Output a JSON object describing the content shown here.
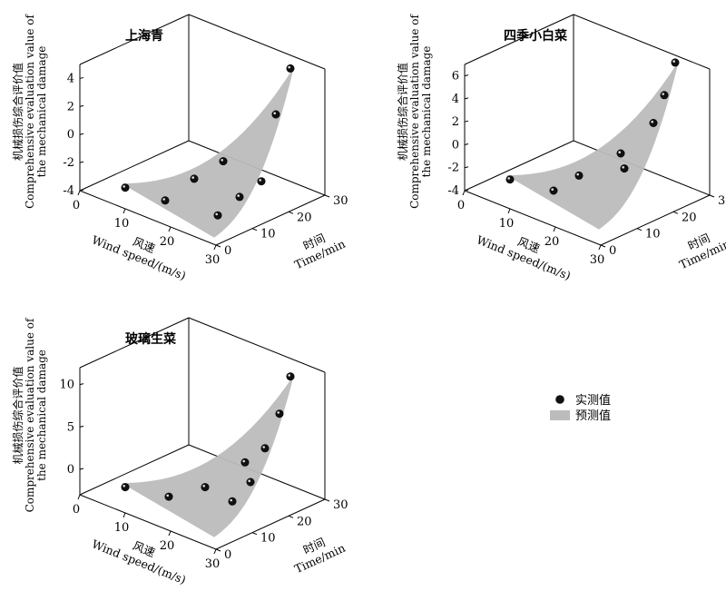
{
  "legend": {
    "measured_label": "实测值",
    "predicted_label": "预测值"
  },
  "colors": {
    "surface": "#bcbcbc",
    "point": "#111111",
    "axis": "#000000"
  },
  "axes": {
    "x_label_cn": "风速",
    "x_label_en": "Wind speed/(m/s)",
    "y_label_cn": "时间",
    "y_label_en": "Time/min",
    "z_label_cn": "机械损伤综合评价值",
    "z_label_en_1": "Comprehensive evaluation value of",
    "z_label_en_2": "the mechanical damage",
    "x_ticks": [
      "0",
      "10",
      "20",
      "30"
    ],
    "y_ticks": [
      "0",
      "10",
      "20",
      "30"
    ]
  },
  "chart_data": [
    {
      "type": "scatter3d+surface",
      "title": "上海青",
      "xlim": [
        0,
        30
      ],
      "ylim": [
        0,
        30
      ],
      "zlim": [
        -4,
        5
      ],
      "z_ticks": [
        "-4",
        "-2",
        "0",
        "2",
        "4"
      ],
      "measured": [
        {
          "wind": 6,
          "time": 5,
          "z": -3.6
        },
        {
          "wind": 14,
          "time": 6,
          "z": -3.6
        },
        {
          "wind": 24,
          "time": 8,
          "z": -3.6
        },
        {
          "wind": 14,
          "time": 14,
          "z": -3.0
        },
        {
          "wind": 24,
          "time": 14,
          "z": -3.0
        },
        {
          "wind": 14,
          "time": 22,
          "z": -2.7
        },
        {
          "wind": 24,
          "time": 20,
          "z": -2.6
        },
        {
          "wind": 24,
          "time": 24,
          "z": 1.7
        },
        {
          "wind": 24,
          "time": 28,
          "z": 4.5
        }
      ]
    },
    {
      "type": "scatter3d+surface",
      "title": "四季小白菜",
      "xlim": [
        0,
        30
      ],
      "ylim": [
        0,
        30
      ],
      "zlim": [
        -4,
        7
      ],
      "z_ticks": [
        "-4",
        "-2",
        "0",
        "2",
        "4",
        "6"
      ],
      "measured": [
        {
          "wind": 6,
          "time": 5,
          "z": -2.8
        },
        {
          "wind": 14,
          "time": 7,
          "z": -2.8
        },
        {
          "wind": 14,
          "time": 14,
          "z": -2.5
        },
        {
          "wind": 20,
          "time": 18,
          "z": -0.2
        },
        {
          "wind": 24,
          "time": 14,
          "z": -0.3
        },
        {
          "wind": 24,
          "time": 22,
          "z": 2.5
        },
        {
          "wind": 24,
          "time": 25,
          "z": 4.5
        },
        {
          "wind": 24,
          "time": 28,
          "z": 6.9
        }
      ]
    },
    {
      "type": "scatter3d+surface",
      "title": "玻璃生菜",
      "xlim": [
        0,
        30
      ],
      "ylim": [
        0,
        30
      ],
      "zlim": [
        -3,
        12
      ],
      "z_ticks": [
        "0",
        "5",
        "10"
      ],
      "measured": [
        {
          "wind": 6,
          "time": 5,
          "z": -1.8
        },
        {
          "wind": 14,
          "time": 7,
          "z": -1.6
        },
        {
          "wind": 18,
          "time": 12,
          "z": -0.6
        },
        {
          "wind": 24,
          "time": 12,
          "z": -1.0
        },
        {
          "wind": 22,
          "time": 18,
          "z": 2.0
        },
        {
          "wind": 24,
          "time": 17,
          "z": 0.3
        },
        {
          "wind": 24,
          "time": 21,
          "z": 3.5
        },
        {
          "wind": 24,
          "time": 25,
          "z": 6.8
        },
        {
          "wind": 24,
          "time": 28,
          "z": 10.6
        }
      ]
    }
  ]
}
